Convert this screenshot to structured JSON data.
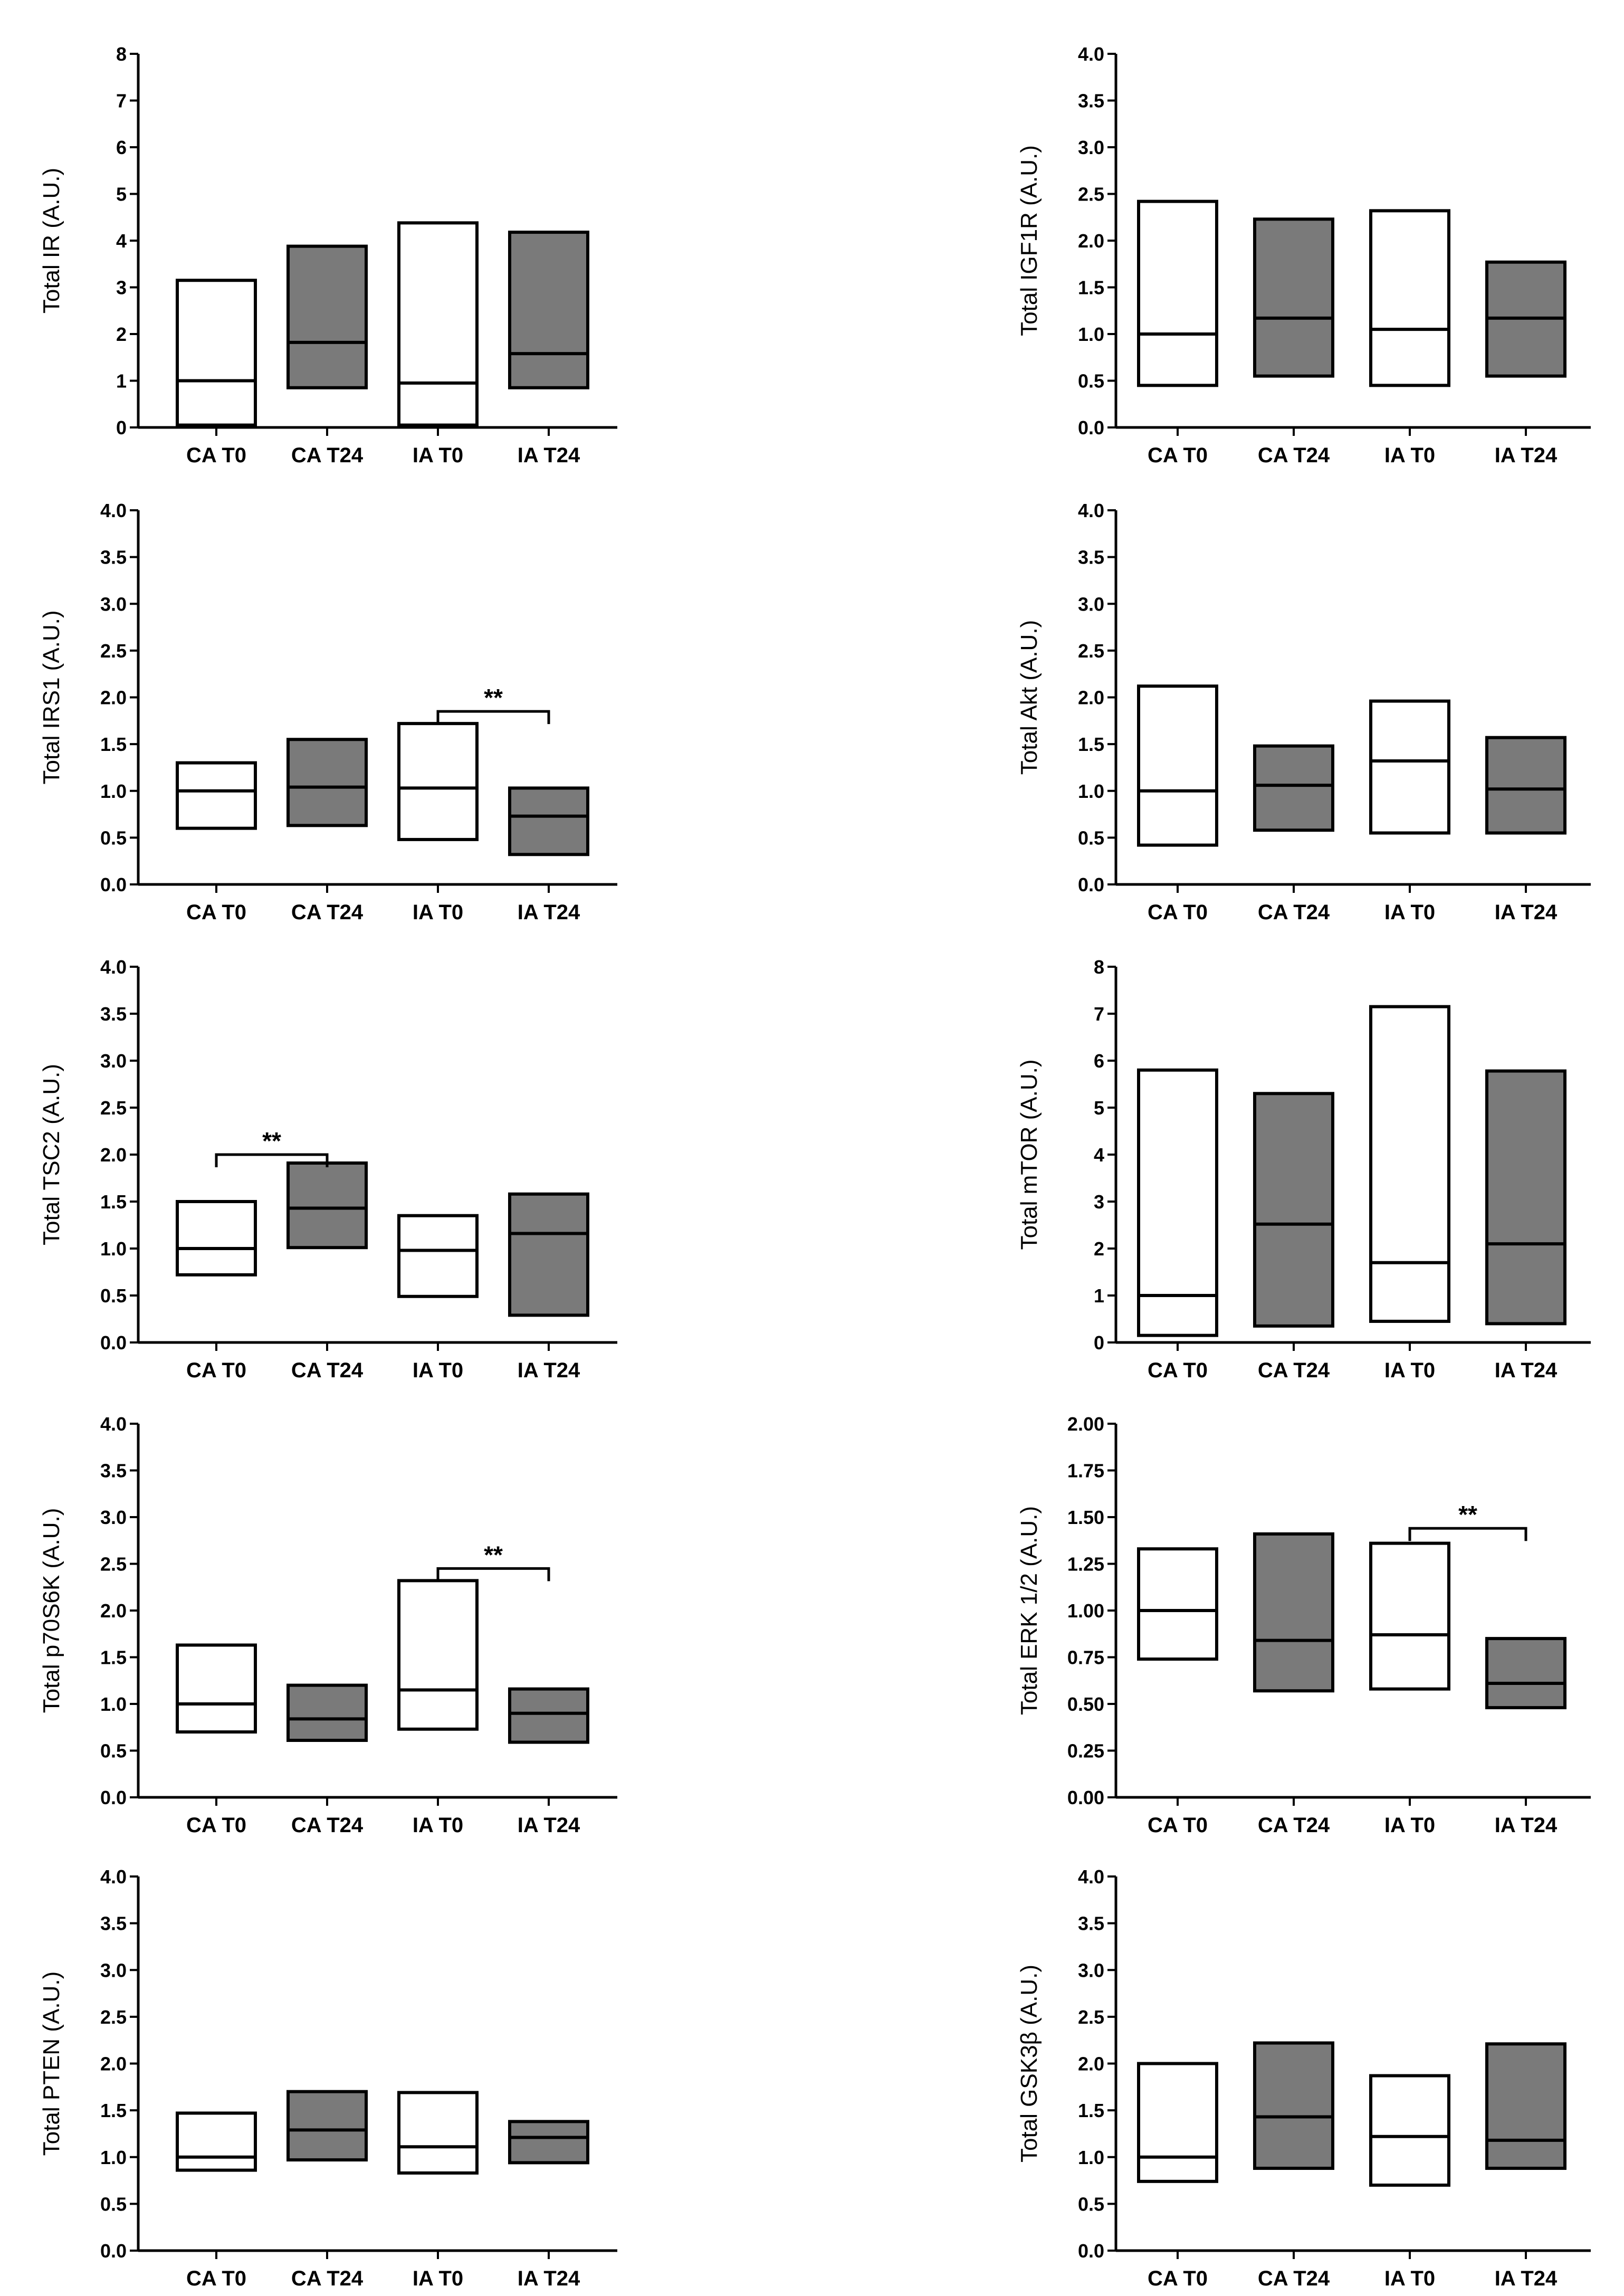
{
  "figure": {
    "colors": {
      "control_fill": "#ffffff",
      "intervention_fill": "#7a7a7a",
      "stroke": "#000000"
    }
  },
  "chart_data": [
    {
      "type": "box",
      "ylabel": "Total IR (A.U.)",
      "ylim": [
        0,
        8
      ],
      "yticks": [
        "0",
        "1",
        "2",
        "3",
        "4",
        "5",
        "6",
        "7",
        "8"
      ],
      "categories": [
        "CA T0",
        "CA T24",
        "IA T0",
        "IA T24"
      ],
      "boxes": [
        {
          "min": 0.05,
          "median": 1.0,
          "max": 3.15
        },
        {
          "min": 0.85,
          "median": 1.82,
          "max": 3.88
        },
        {
          "min": 0.05,
          "median": 0.95,
          "max": 4.38
        },
        {
          "min": 0.85,
          "median": 1.58,
          "max": 4.18
        }
      ],
      "significance": []
    },
    {
      "type": "box",
      "ylabel": "Total IGF1R (A.U.)",
      "ylim": [
        0,
        4
      ],
      "yticks": [
        "0.0",
        "0.5",
        "1.0",
        "1.5",
        "2.0",
        "2.5",
        "3.0",
        "3.5",
        "4.0"
      ],
      "categories": [
        "CA T0",
        "CA T24",
        "IA T0",
        "IA T24"
      ],
      "boxes": [
        {
          "min": 0.45,
          "median": 1.0,
          "max": 2.42
        },
        {
          "min": 0.55,
          "median": 1.17,
          "max": 2.23
        },
        {
          "min": 0.45,
          "median": 1.05,
          "max": 2.32
        },
        {
          "min": 0.55,
          "median": 1.17,
          "max": 1.77
        }
      ],
      "significance": []
    },
    {
      "type": "box",
      "ylabel": "Total IRS1 (A.U.)",
      "ylim": [
        0,
        4
      ],
      "yticks": [
        "0.0",
        "0.5",
        "1.0",
        "1.5",
        "2.0",
        "2.5",
        "3.0",
        "3.5",
        "4.0"
      ],
      "categories": [
        "CA T0",
        "CA T24",
        "IA T0",
        "IA T24"
      ],
      "boxes": [
        {
          "min": 0.6,
          "median": 1.0,
          "max": 1.3
        },
        {
          "min": 0.63,
          "median": 1.04,
          "max": 1.55
        },
        {
          "min": 0.48,
          "median": 1.03,
          "max": 1.72
        },
        {
          "min": 0.32,
          "median": 0.73,
          "max": 1.03
        }
      ],
      "significance": [
        {
          "from": 2,
          "to": 3,
          "level": 1.85,
          "label": "**"
        }
      ]
    },
    {
      "type": "box",
      "ylabel": "Total Akt (A.U.)",
      "ylim": [
        0,
        4
      ],
      "yticks": [
        "0.0",
        "0.5",
        "1.0",
        "1.5",
        "2.0",
        "2.5",
        "3.0",
        "3.5",
        "4.0"
      ],
      "categories": [
        "CA T0",
        "CA T24",
        "IA T0",
        "IA T24"
      ],
      "boxes": [
        {
          "min": 0.42,
          "median": 1.0,
          "max": 2.12
        },
        {
          "min": 0.58,
          "median": 1.06,
          "max": 1.48
        },
        {
          "min": 0.55,
          "median": 1.32,
          "max": 1.96
        },
        {
          "min": 0.55,
          "median": 1.02,
          "max": 1.57
        }
      ],
      "significance": []
    },
    {
      "type": "box",
      "ylabel": "Total TSC2 (A.U.)",
      "ylim": [
        0,
        4
      ],
      "yticks": [
        "0.0",
        "0.5",
        "1.0",
        "1.5",
        "2.0",
        "2.5",
        "3.0",
        "3.5",
        "4.0"
      ],
      "categories": [
        "CA T0",
        "CA T24",
        "IA T0",
        "IA T24"
      ],
      "boxes": [
        {
          "min": 0.72,
          "median": 1.0,
          "max": 1.5
        },
        {
          "min": 1.01,
          "median": 1.43,
          "max": 1.91
        },
        {
          "min": 0.49,
          "median": 0.98,
          "max": 1.35
        },
        {
          "min": 0.29,
          "median": 1.16,
          "max": 1.58
        }
      ],
      "significance": [
        {
          "from": 0,
          "to": 1,
          "level": 2.0,
          "label": "**"
        }
      ]
    },
    {
      "type": "box",
      "ylabel": "Total mTOR (A.U.)",
      "ylim": [
        0,
        8
      ],
      "yticks": [
        "0",
        "1",
        "2",
        "3",
        "4",
        "5",
        "6",
        "7",
        "8"
      ],
      "categories": [
        "CA T0",
        "CA T24",
        "IA T0",
        "IA T24"
      ],
      "boxes": [
        {
          "min": 0.15,
          "median": 1.0,
          "max": 5.8
        },
        {
          "min": 0.35,
          "median": 2.52,
          "max": 5.3
        },
        {
          "min": 0.45,
          "median": 1.7,
          "max": 7.15
        },
        {
          "min": 0.4,
          "median": 2.1,
          "max": 5.78
        }
      ],
      "significance": []
    },
    {
      "type": "box",
      "ylabel": "Total p70S6K (A.U.)",
      "ylim": [
        0,
        4
      ],
      "yticks": [
        "0.0",
        "0.5",
        "1.0",
        "1.5",
        "2.0",
        "2.5",
        "3.0",
        "3.5",
        "4.0"
      ],
      "categories": [
        "CA T0",
        "CA T24",
        "IA T0",
        "IA T24"
      ],
      "boxes": [
        {
          "min": 0.7,
          "median": 1.0,
          "max": 1.63
        },
        {
          "min": 0.61,
          "median": 0.84,
          "max": 1.2
        },
        {
          "min": 0.73,
          "median": 1.15,
          "max": 2.32
        },
        {
          "min": 0.59,
          "median": 0.9,
          "max": 1.16
        }
      ],
      "significance": [
        {
          "from": 2,
          "to": 3,
          "level": 2.45,
          "label": "**"
        }
      ]
    },
    {
      "type": "box",
      "ylabel": "Total ERK 1/2 (A.U.)",
      "ylim": [
        0,
        2
      ],
      "yticks": [
        "0.00",
        "0.25",
        "0.50",
        "0.75",
        "1.00",
        "1.25",
        "1.50",
        "1.75",
        "2.00"
      ],
      "categories": [
        "CA T0",
        "CA T24",
        "IA T0",
        "IA T24"
      ],
      "boxes": [
        {
          "min": 0.74,
          "median": 1.0,
          "max": 1.33
        },
        {
          "min": 0.57,
          "median": 0.84,
          "max": 1.41
        },
        {
          "min": 0.58,
          "median": 0.87,
          "max": 1.36
        },
        {
          "min": 0.48,
          "median": 0.61,
          "max": 0.85
        }
      ],
      "significance": [
        {
          "from": 2,
          "to": 3,
          "level": 1.44,
          "label": "**"
        }
      ]
    },
    {
      "type": "box",
      "ylabel": "Total PTEN (A.U.)",
      "ylim": [
        0,
        4
      ],
      "yticks": [
        "0.0",
        "0.5",
        "1.0",
        "1.5",
        "2.0",
        "2.5",
        "3.0",
        "3.5",
        "4.0"
      ],
      "categories": [
        "CA T0",
        "CA T24",
        "IA T0",
        "IA T24"
      ],
      "boxes": [
        {
          "min": 0.86,
          "median": 1.0,
          "max": 1.47
        },
        {
          "min": 0.97,
          "median": 1.29,
          "max": 1.7
        },
        {
          "min": 0.83,
          "median": 1.11,
          "max": 1.69
        },
        {
          "min": 0.94,
          "median": 1.21,
          "max": 1.38
        }
      ],
      "significance": []
    },
    {
      "type": "box",
      "ylabel": "Total GSK3β (A.U.)",
      "ylim": [
        0,
        4
      ],
      "yticks": [
        "0.0",
        "0.5",
        "1.0",
        "1.5",
        "2.0",
        "2.5",
        "3.0",
        "3.5",
        "4.0"
      ],
      "categories": [
        "CA T0",
        "CA T24",
        "IA T0",
        "IA T24"
      ],
      "boxes": [
        {
          "min": 0.74,
          "median": 1.0,
          "max": 2.0
        },
        {
          "min": 0.88,
          "median": 1.43,
          "max": 2.22
        },
        {
          "min": 0.7,
          "median": 1.22,
          "max": 1.87
        },
        {
          "min": 0.88,
          "median": 1.18,
          "max": 2.21
        }
      ],
      "significance": []
    }
  ]
}
